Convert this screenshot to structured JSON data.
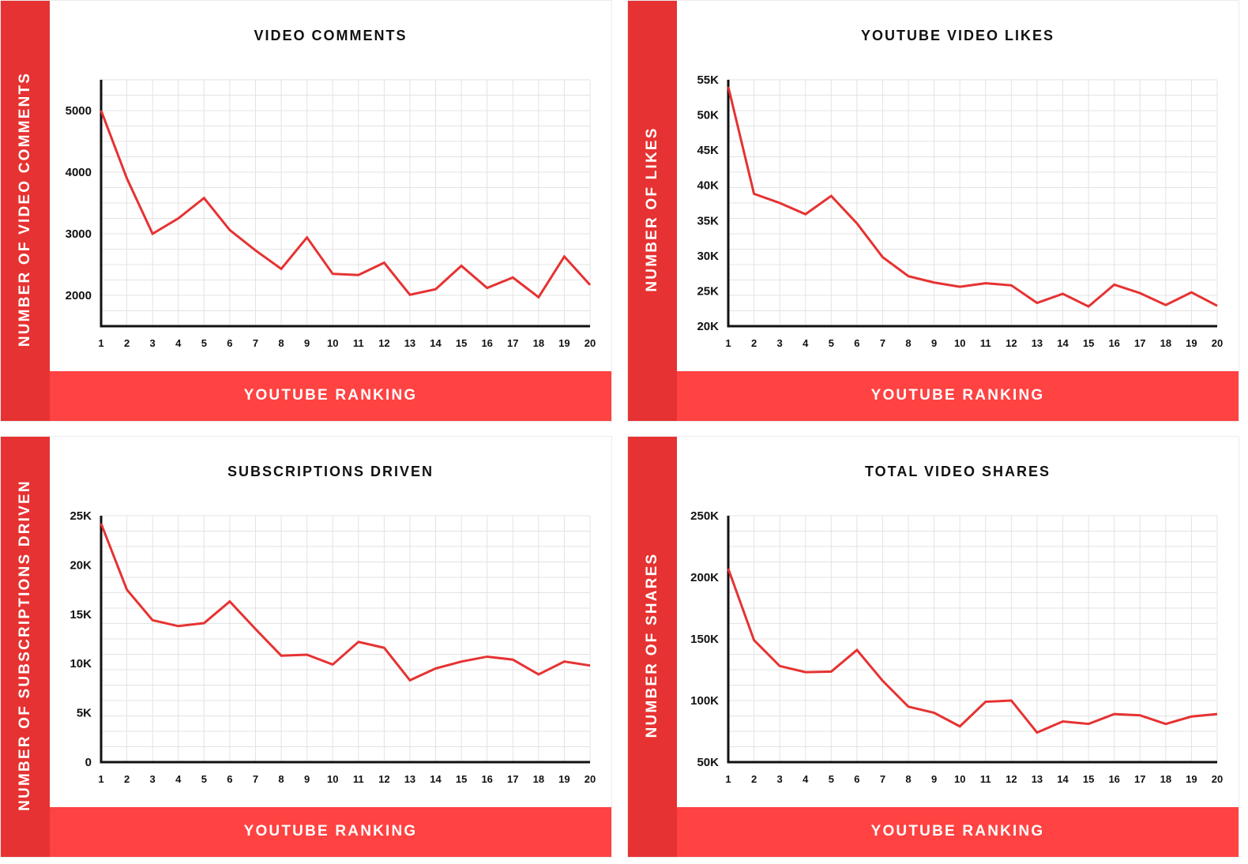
{
  "chart_data": [
    {
      "type": "line",
      "title": "VIDEO COMMENTS",
      "xlabel": "YOUTUBE RANKING",
      "ylabel": "NUMBER OF VIDEO COMMENTS",
      "x": [
        1,
        2,
        3,
        4,
        5,
        6,
        7,
        8,
        9,
        10,
        11,
        12,
        13,
        14,
        15,
        16,
        17,
        18,
        19,
        20
      ],
      "x_tick_labels": [
        "1",
        "2",
        "3",
        "4",
        "5",
        "6",
        "7",
        "8",
        "9",
        "10",
        "11",
        "12",
        "13",
        "14",
        "15",
        "16",
        "17",
        "18",
        "19",
        "20"
      ],
      "y_ticks": [
        2000,
        3000,
        4000,
        5000
      ],
      "y_tick_labels": [
        "2000",
        "3000",
        "4000",
        "5000"
      ],
      "ylim": [
        1500,
        5500
      ],
      "series": [
        {
          "values": [
            5000,
            3900,
            3000,
            3250,
            3580,
            3060,
            2730,
            2430,
            2940,
            2350,
            2330,
            2530,
            2010,
            2100,
            2480,
            2120,
            2290,
            1970,
            2630,
            2170
          ]
        }
      ],
      "grid": true,
      "line_color": "#e63232"
    },
    {
      "type": "line",
      "title": "YOUTUBE VIDEO LIKES",
      "xlabel": "YOUTUBE RANKING",
      "ylabel": "NUMBER OF LIKES",
      "x": [
        1,
        2,
        3,
        4,
        5,
        6,
        7,
        8,
        9,
        10,
        11,
        12,
        13,
        14,
        15,
        16,
        17,
        18,
        19,
        20
      ],
      "x_tick_labels": [
        "1",
        "2",
        "3",
        "4",
        "5",
        "6",
        "7",
        "8",
        "9",
        "10",
        "11",
        "12",
        "13",
        "14",
        "15",
        "16",
        "17",
        "18",
        "19",
        "20"
      ],
      "y_ticks": [
        20000,
        25000,
        30000,
        35000,
        40000,
        45000,
        50000,
        55000
      ],
      "y_tick_labels": [
        "20K",
        "25K",
        "30K",
        "35K",
        "40K",
        "45K",
        "50K",
        "55K"
      ],
      "ylim": [
        20000,
        55000
      ],
      "series": [
        {
          "values": [
            54000,
            38800,
            37500,
            35900,
            38500,
            34600,
            29800,
            27100,
            26200,
            25600,
            26100,
            25800,
            23300,
            24600,
            22800,
            25900,
            24700,
            23000,
            24800,
            22900
          ]
        }
      ],
      "grid": true,
      "line_color": "#e63232"
    },
    {
      "type": "line",
      "title": "SUBSCRIPTIONS DRIVEN",
      "xlabel": "YOUTUBE RANKING",
      "ylabel": "NUMBER OF SUBSCRIPTIONS DRIVEN",
      "x": [
        1,
        2,
        3,
        4,
        5,
        6,
        7,
        8,
        9,
        10,
        11,
        12,
        13,
        14,
        15,
        16,
        17,
        18,
        19,
        20
      ],
      "x_tick_labels": [
        "1",
        "2",
        "3",
        "4",
        "5",
        "6",
        "7",
        "8",
        "9",
        "10",
        "11",
        "12",
        "13",
        "14",
        "15",
        "16",
        "17",
        "18",
        "19",
        "20"
      ],
      "y_ticks": [
        0,
        5000,
        10000,
        15000,
        20000,
        25000
      ],
      "y_tick_labels": [
        "0",
        "5K",
        "10K",
        "15K",
        "20K",
        "25K"
      ],
      "ylim": [
        0,
        25000
      ],
      "series": [
        {
          "values": [
            24200,
            17500,
            14400,
            13800,
            14100,
            16300,
            13500,
            10800,
            10900,
            9900,
            12200,
            11600,
            8300,
            9500,
            10200,
            10700,
            10400,
            8900,
            10200,
            9800
          ]
        }
      ],
      "grid": true,
      "line_color": "#e63232"
    },
    {
      "type": "line",
      "title": "TOTAL VIDEO SHARES",
      "xlabel": "YOUTUBE RANKING",
      "ylabel": "NUMBER OF SHARES",
      "x": [
        1,
        2,
        3,
        4,
        5,
        6,
        7,
        8,
        9,
        10,
        11,
        12,
        13,
        14,
        15,
        16,
        17,
        18,
        19,
        20
      ],
      "x_tick_labels": [
        "1",
        "2",
        "3",
        "4",
        "5",
        "6",
        "7",
        "8",
        "9",
        "10",
        "11",
        "12",
        "13",
        "14",
        "15",
        "16",
        "17",
        "18",
        "19",
        "20"
      ],
      "y_ticks": [
        50000,
        100000,
        150000,
        200000,
        250000
      ],
      "y_tick_labels": [
        "50K",
        "100K",
        "150K",
        "200K",
        "250K"
      ],
      "ylim": [
        50000,
        250000
      ],
      "series": [
        {
          "values": [
            207000,
            149000,
            128000,
            123000,
            123500,
            141000,
            116000,
            95000,
            90000,
            79000,
            99000,
            100000,
            74000,
            83000,
            81000,
            89000,
            88000,
            81000,
            87000,
            89000
          ]
        }
      ],
      "grid": true,
      "line_color": "#e63232"
    }
  ]
}
